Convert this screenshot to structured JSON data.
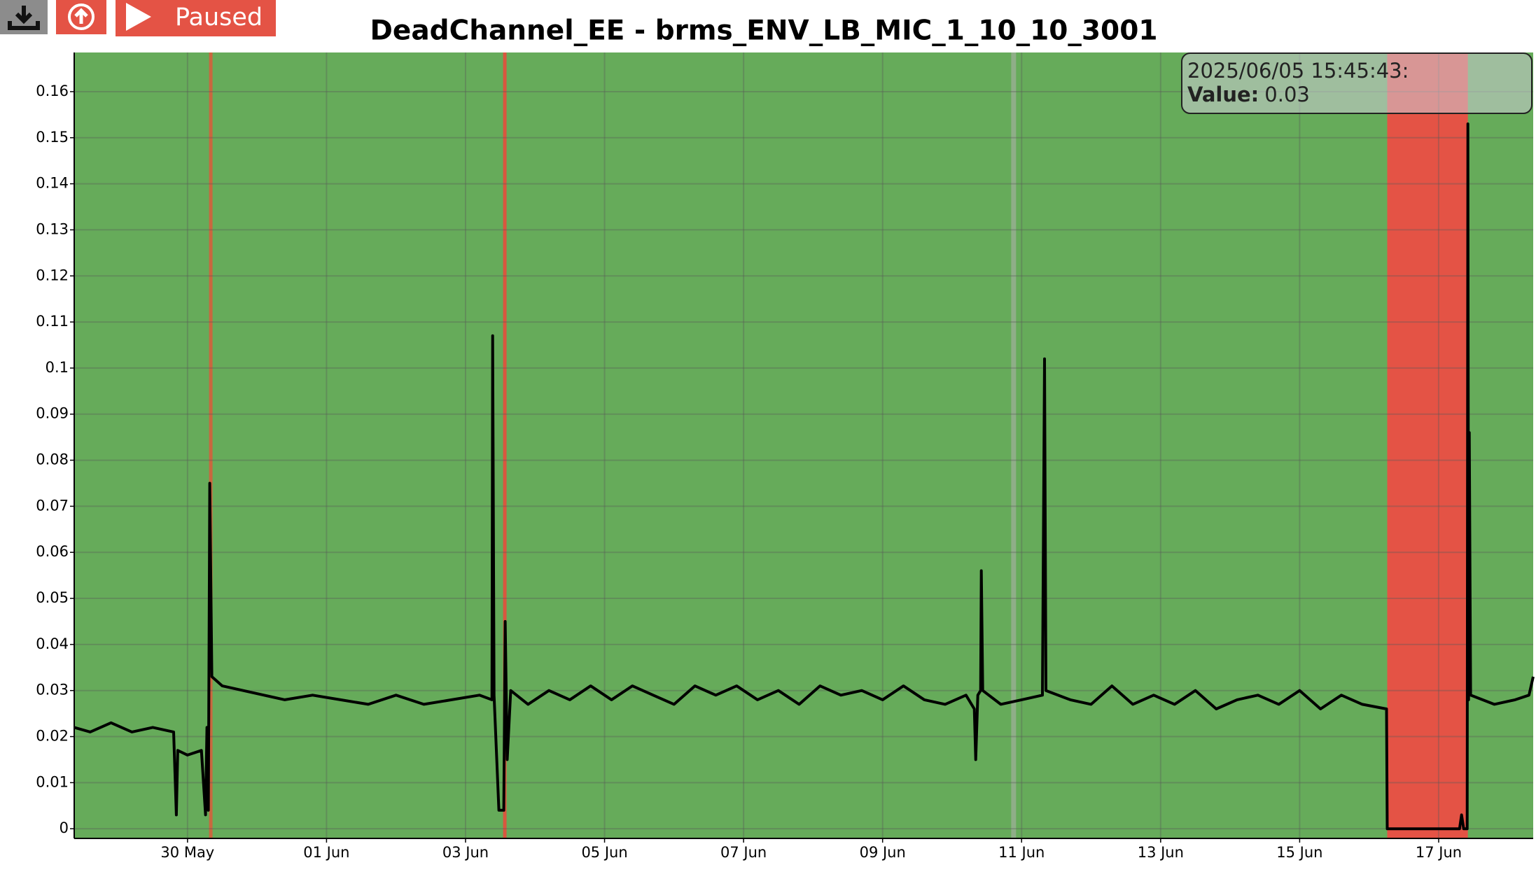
{
  "toolbar": {
    "status": "Paused"
  },
  "chart_data": {
    "type": "line",
    "title": "DeadChannel_EE - brms_ENV_LB_MIC_1_10_10_3001",
    "x": [
      148.37,
      148.6,
      148.9,
      149.2,
      149.5,
      149.8,
      149.84,
      149.86,
      150.0,
      150.2,
      150.26,
      150.28,
      150.3,
      150.32,
      150.35,
      150.5,
      150.8,
      151.1,
      151.4,
      151.8,
      152.2,
      152.6,
      153.0,
      153.4,
      153.8,
      154.2,
      154.38,
      154.39,
      154.41,
      154.48,
      154.55,
      154.57,
      154.6,
      154.65,
      154.9,
      155.2,
      155.5,
      155.8,
      156.1,
      156.4,
      156.7,
      157.0,
      157.3,
      157.6,
      157.9,
      158.2,
      158.5,
      158.8,
      159.1,
      159.4,
      159.7,
      160.0,
      160.3,
      160.6,
      160.9,
      161.2,
      161.32,
      161.34,
      161.37,
      161.41,
      161.42,
      161.44,
      161.7,
      162.0,
      162.3,
      162.33,
      162.35,
      162.7,
      163.0,
      163.3,
      163.6,
      163.9,
      164.2,
      164.5,
      164.8,
      165.1,
      165.4,
      165.7,
      166.0,
      166.3,
      166.6,
      166.9,
      167.25,
      167.26,
      168.3,
      168.33,
      168.36,
      168.41,
      168.42,
      168.43,
      168.44,
      168.46,
      168.8,
      169.1,
      169.3,
      169.36
    ],
    "values": [
      0.022,
      0.021,
      0.023,
      0.021,
      0.022,
      0.021,
      0.003,
      0.017,
      0.016,
      0.017,
      0.003,
      0.022,
      0.004,
      0.075,
      0.033,
      0.031,
      0.03,
      0.029,
      0.028,
      0.029,
      0.028,
      0.027,
      0.029,
      0.027,
      0.028,
      0.029,
      0.028,
      0.107,
      0.029,
      0.004,
      0.004,
      0.045,
      0.015,
      0.03,
      0.027,
      0.03,
      0.028,
      0.031,
      0.028,
      0.031,
      0.029,
      0.027,
      0.031,
      0.029,
      0.031,
      0.028,
      0.03,
      0.027,
      0.031,
      0.029,
      0.03,
      0.028,
      0.031,
      0.028,
      0.027,
      0.029,
      0.026,
      0.015,
      0.029,
      0.03,
      0.056,
      0.03,
      0.027,
      0.028,
      0.029,
      0.102,
      0.03,
      0.028,
      0.027,
      0.031,
      0.027,
      0.029,
      0.027,
      0.03,
      0.026,
      0.028,
      0.029,
      0.027,
      0.03,
      0.026,
      0.029,
      0.027,
      0.026,
      0,
      0,
      0.003,
      0,
      0,
      0.153,
      0.028,
      0.086,
      0.029,
      0.027,
      0.028,
      0.029,
      0.033
    ],
    "color": "#000000",
    "background": "#66ab5a",
    "bands": [
      {
        "start": 150.31,
        "end": 150.36,
        "color": "#c8683f"
      },
      {
        "start": 154.54,
        "end": 154.59,
        "color": "#d8573f"
      },
      {
        "start": 161.85,
        "end": 161.92,
        "color": "#8fae88"
      },
      {
        "start": 167.26,
        "end": 168.42,
        "color": "#e45345"
      }
    ],
    "xlim": [
      148.37,
      169.36
    ],
    "ylim": [
      -0.0021,
      0.1685
    ],
    "xticks": [
      {
        "value": 150,
        "label": "30 May"
      },
      {
        "value": 152,
        "label": "01 Jun"
      },
      {
        "value": 154,
        "label": "03 Jun"
      },
      {
        "value": 156,
        "label": "05 Jun"
      },
      {
        "value": 158,
        "label": "07 Jun"
      },
      {
        "value": 160,
        "label": "09 Jun"
      },
      {
        "value": 162,
        "label": "11 Jun"
      },
      {
        "value": 164,
        "label": "13 Jun"
      },
      {
        "value": 166,
        "label": "15 Jun"
      },
      {
        "value": 168,
        "label": "17 Jun"
      }
    ],
    "yticks": [
      0,
      0.01,
      0.02,
      0.03,
      0.04,
      0.05,
      0.06,
      0.07,
      0.08,
      0.09,
      0.1,
      0.11,
      0.12,
      0.13,
      0.14,
      0.15,
      0.16
    ],
    "grid": true,
    "tooltip": {
      "time": "2025/06/05 15:45:43:",
      "label": "Value:",
      "value": 0.03
    }
  }
}
